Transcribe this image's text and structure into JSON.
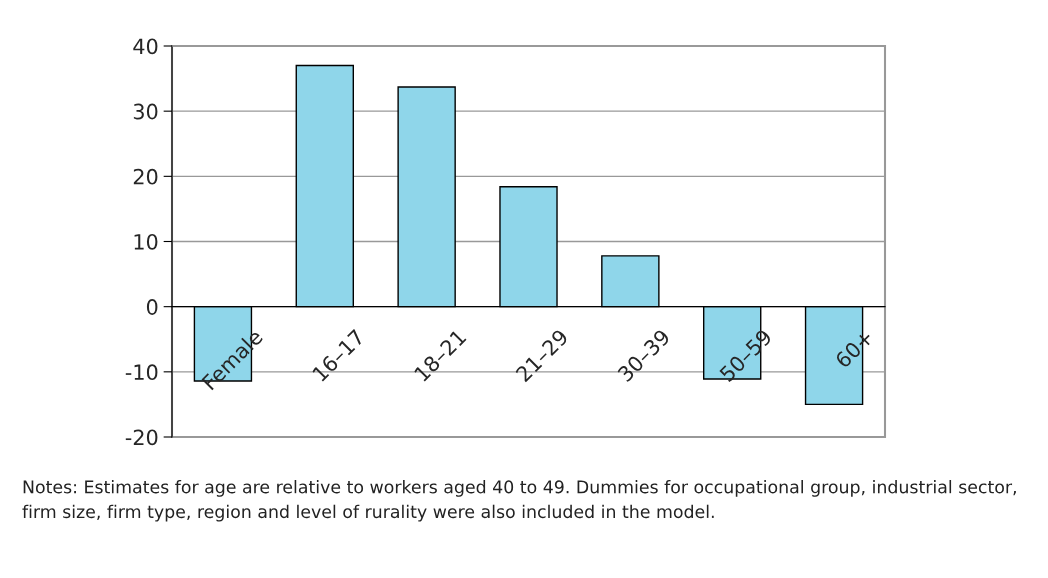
{
  "chart_data": {
    "type": "bar",
    "categories": [
      "Female",
      "16–17",
      "18–21",
      "21–29",
      "30–39",
      "50–59",
      "60+"
    ],
    "values": [
      -11.4,
      37.0,
      33.7,
      18.4,
      7.8,
      -11.1,
      -15.0
    ],
    "color": "#8fd6ea",
    "ylim": [
      -20,
      40
    ],
    "yticks": [
      -20,
      -10,
      0,
      10,
      20,
      30,
      40
    ],
    "grid": "y",
    "legend": false,
    "annotations": [
      "Notes: Estimates for age are relative to workers aged 40 to 49. Dummies for occupational group, industrial sector, firm size, firm type, region and level of rurality were also included in the model."
    ]
  }
}
